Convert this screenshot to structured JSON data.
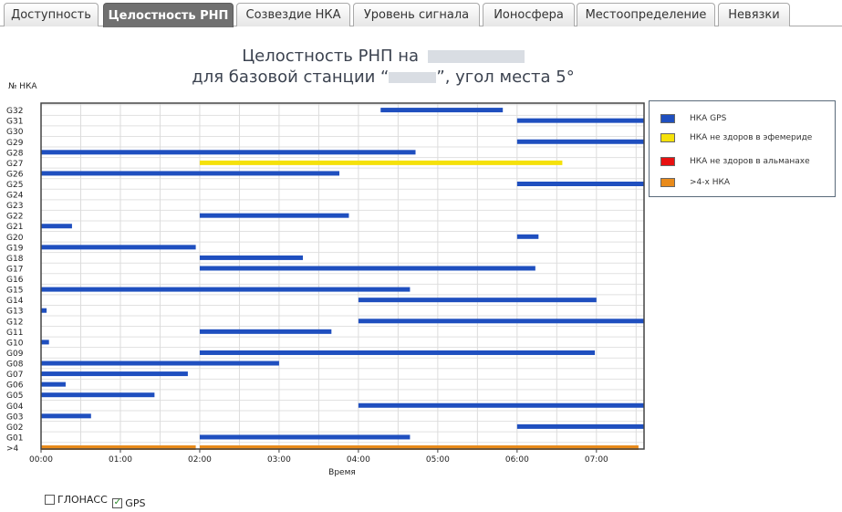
{
  "tabs": [
    {
      "label": "Доступность",
      "active": false
    },
    {
      "label": "Целостность РНП",
      "active": true
    },
    {
      "label": "Созвездие НКА",
      "active": false
    },
    {
      "label": "Уровень сигнала",
      "active": false
    },
    {
      "label": "Ионосфера",
      "active": false
    },
    {
      "label": "Местоопределение",
      "active": false
    },
    {
      "label": "Невязки",
      "active": false
    }
  ],
  "header": {
    "line1": "Целостность РНП на",
    "line2_prefix": "для базовой станции “",
    "line2_suffix": "”, угол места 5°"
  },
  "legend": {
    "items": [
      {
        "label": "НКА GPS",
        "color": "#1f4fbf"
      },
      {
        "label": "НКА не здоров в эфемериде",
        "color": "#f5e10a"
      },
      {
        "label": "НКА не здоров в альманахе",
        "color": "#e81010"
      },
      {
        "label": ">4-х НКА",
        "color": "#e88a1a"
      }
    ]
  },
  "controls": {
    "glonass_label": "ГЛОНАСС",
    "glonass_checked": false,
    "gps_label": "GPS",
    "gps_checked": true,
    "check_mark": "✓"
  },
  "chart_data": {
    "type": "timeline",
    "ylabel": "№ НКА",
    "xlabel": "Время",
    "x_range_hours": [
      0,
      7.6
    ],
    "x_ticks": [
      "00:00",
      "01:00",
      "02:00",
      "03:00",
      "04:00",
      "05:00",
      "06:00",
      "07:00"
    ],
    "categories": [
      ">4",
      "G01",
      "G02",
      "G03",
      "G04",
      "G05",
      "G06",
      "G07",
      "G08",
      "G09",
      "G10",
      "G11",
      "G12",
      "G13",
      "G14",
      "G15",
      "G16",
      "G17",
      "G18",
      "G19",
      "G20",
      "G21",
      "G22",
      "G23",
      "G24",
      "G25",
      "G26",
      "G27",
      "G28",
      "G29",
      "G30",
      "G31",
      "G32"
    ],
    "colors": {
      "gps": "#1f4fbf",
      "ephemeris": "#f5e10a",
      "almanac": "#e81010",
      "more4": "#e88a1a"
    },
    "intervals": [
      {
        "sat": ">4",
        "start": 0.0,
        "end": 1.95,
        "kind": "more4"
      },
      {
        "sat": ">4",
        "start": 2.0,
        "end": 7.53,
        "kind": "more4"
      },
      {
        "sat": "G01",
        "start": 2.0,
        "end": 4.65,
        "kind": "gps"
      },
      {
        "sat": "G02",
        "start": 6.0,
        "end": 7.6,
        "kind": "gps"
      },
      {
        "sat": "G03",
        "start": 0.0,
        "end": 0.63,
        "kind": "gps"
      },
      {
        "sat": "G04",
        "start": 4.0,
        "end": 7.6,
        "kind": "gps"
      },
      {
        "sat": "G05",
        "start": 0.0,
        "end": 1.43,
        "kind": "gps"
      },
      {
        "sat": "G06",
        "start": 0.0,
        "end": 0.31,
        "kind": "gps"
      },
      {
        "sat": "G07",
        "start": 0.0,
        "end": 1.85,
        "kind": "gps"
      },
      {
        "sat": "G08",
        "start": 0.0,
        "end": 3.0,
        "kind": "gps"
      },
      {
        "sat": "G09",
        "start": 2.0,
        "end": 6.98,
        "kind": "gps"
      },
      {
        "sat": "G10",
        "start": 0.0,
        "end": 0.1,
        "kind": "gps"
      },
      {
        "sat": "G11",
        "start": 2.0,
        "end": 3.66,
        "kind": "gps"
      },
      {
        "sat": "G12",
        "start": 4.0,
        "end": 7.6,
        "kind": "gps"
      },
      {
        "sat": "G13",
        "start": 0.0,
        "end": 0.07,
        "kind": "gps"
      },
      {
        "sat": "G14",
        "start": 4.0,
        "end": 7.0,
        "kind": "gps"
      },
      {
        "sat": "G15",
        "start": 0.0,
        "end": 4.65,
        "kind": "gps"
      },
      {
        "sat": "G17",
        "start": 2.0,
        "end": 6.23,
        "kind": "gps"
      },
      {
        "sat": "G18",
        "start": 2.0,
        "end": 3.3,
        "kind": "gps"
      },
      {
        "sat": "G19",
        "start": 0.0,
        "end": 1.95,
        "kind": "gps"
      },
      {
        "sat": "G20",
        "start": 6.0,
        "end": 6.27,
        "kind": "gps"
      },
      {
        "sat": "G21",
        "start": 0.0,
        "end": 0.39,
        "kind": "gps"
      },
      {
        "sat": "G22",
        "start": 2.0,
        "end": 3.88,
        "kind": "gps"
      },
      {
        "sat": "G25",
        "start": 6.0,
        "end": 7.6,
        "kind": "gps"
      },
      {
        "sat": "G26",
        "start": 0.0,
        "end": 3.76,
        "kind": "gps"
      },
      {
        "sat": "G27",
        "start": 2.0,
        "end": 6.57,
        "kind": "ephemeris"
      },
      {
        "sat": "G28",
        "start": 0.0,
        "end": 4.72,
        "kind": "gps"
      },
      {
        "sat": "G29",
        "start": 6.0,
        "end": 7.6,
        "kind": "gps"
      },
      {
        "sat": "G31",
        "start": 6.0,
        "end": 7.6,
        "kind": "gps"
      },
      {
        "sat": "G32",
        "start": 4.28,
        "end": 5.82,
        "kind": "gps"
      }
    ],
    "grid": true,
    "legend_position": "right"
  }
}
